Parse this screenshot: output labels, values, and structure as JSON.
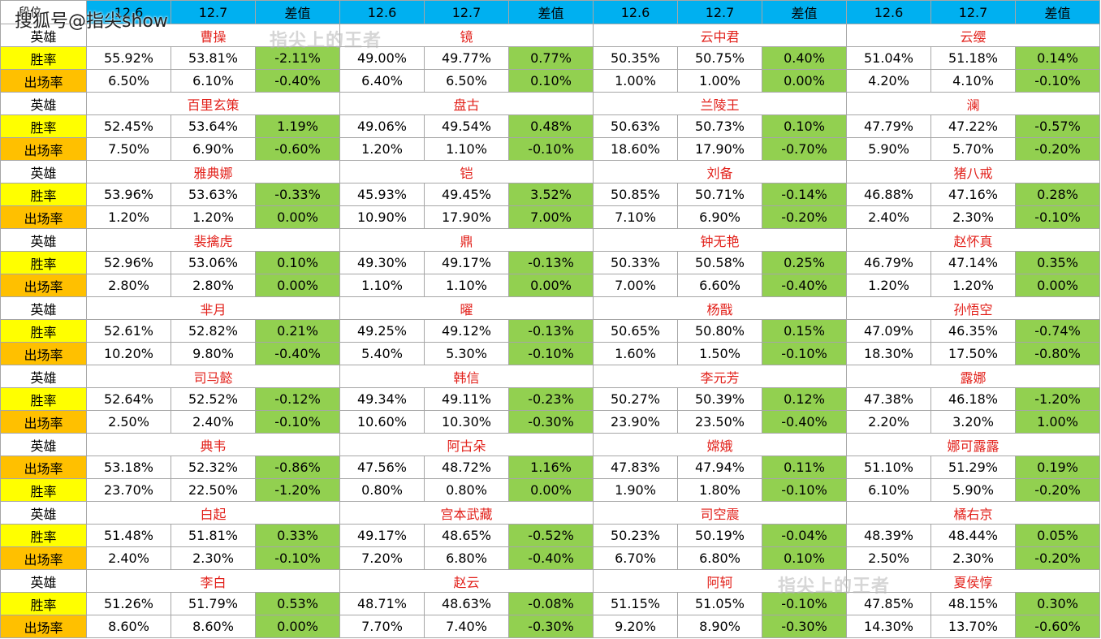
{
  "header": {
    "first_col": "段位",
    "cols": [
      "12.6",
      "12.7",
      "差值",
      "12.6",
      "12.7",
      "差值",
      "12.6",
      "12.7",
      "差值",
      "12.6",
      "12.7",
      "差值"
    ]
  },
  "watermarks": {
    "logo": "搜狐号@指尖show",
    "gray_top": "指尖上的王者",
    "gray_bottom": "指尖上的王者"
  },
  "colors": {
    "header": "#00b0f0",
    "win_label": "#ffff00",
    "pick_label": "#ffc000",
    "diff": "#92d050",
    "hero_name": "#e2201a"
  },
  "hero_label": "英雄",
  "blocks": [
    {
      "heroes": [
        "曹操",
        "镜",
        "云中君",
        "云缨"
      ],
      "rows": [
        {
          "label": "胜率",
          "type": "win",
          "values": [
            "55.92%",
            "53.81%",
            "-2.11%",
            "49.00%",
            "49.77%",
            "0.77%",
            "50.35%",
            "50.75%",
            "0.40%",
            "51.04%",
            "51.18%",
            "0.14%"
          ]
        },
        {
          "label": "出场率",
          "type": "pick",
          "values": [
            "6.50%",
            "6.10%",
            "-0.40%",
            "6.40%",
            "6.50%",
            "0.10%",
            "1.00%",
            "1.00%",
            "0.00%",
            "4.20%",
            "4.10%",
            "-0.10%"
          ]
        }
      ]
    },
    {
      "heroes": [
        "百里玄策",
        "盘古",
        "兰陵王",
        "澜"
      ],
      "rows": [
        {
          "label": "胜率",
          "type": "win",
          "values": [
            "52.45%",
            "53.64%",
            "1.19%",
            "49.06%",
            "49.54%",
            "0.48%",
            "50.63%",
            "50.73%",
            "0.10%",
            "47.79%",
            "47.22%",
            "-0.57%"
          ]
        },
        {
          "label": "出场率",
          "type": "pick",
          "values": [
            "7.50%",
            "6.90%",
            "-0.60%",
            "1.20%",
            "1.10%",
            "-0.10%",
            "18.60%",
            "17.90%",
            "-0.70%",
            "5.90%",
            "5.70%",
            "-0.20%"
          ]
        }
      ]
    },
    {
      "heroes": [
        "雅典娜",
        "铠",
        "刘备",
        "猪八戒"
      ],
      "rows": [
        {
          "label": "胜率",
          "type": "win",
          "values": [
            "53.96%",
            "53.63%",
            "-0.33%",
            "45.93%",
            "49.45%",
            "3.52%",
            "50.85%",
            "50.71%",
            "-0.14%",
            "46.88%",
            "47.16%",
            "0.28%"
          ]
        },
        {
          "label": "出场率",
          "type": "pick",
          "values": [
            "1.20%",
            "1.20%",
            "0.00%",
            "10.90%",
            "17.90%",
            "7.00%",
            "7.10%",
            "6.90%",
            "-0.20%",
            "2.40%",
            "2.30%",
            "-0.10%"
          ]
        }
      ]
    },
    {
      "heroes": [
        "裴擒虎",
        "鼎",
        "钟无艳",
        "赵怀真"
      ],
      "rows": [
        {
          "label": "胜率",
          "type": "win",
          "values": [
            "52.96%",
            "53.06%",
            "0.10%",
            "49.30%",
            "49.17%",
            "-0.13%",
            "50.33%",
            "50.58%",
            "0.25%",
            "46.79%",
            "47.14%",
            "0.35%"
          ]
        },
        {
          "label": "出场率",
          "type": "pick",
          "values": [
            "2.80%",
            "2.80%",
            "0.00%",
            "1.10%",
            "1.10%",
            "0.00%",
            "7.00%",
            "6.60%",
            "-0.40%",
            "1.20%",
            "1.20%",
            "0.00%"
          ]
        }
      ]
    },
    {
      "heroes": [
        "芈月",
        "曜",
        "杨戬",
        "孙悟空"
      ],
      "rows": [
        {
          "label": "胜率",
          "type": "win",
          "values": [
            "52.61%",
            "52.82%",
            "0.21%",
            "49.25%",
            "49.12%",
            "-0.13%",
            "50.65%",
            "50.80%",
            "0.15%",
            "47.09%",
            "46.35%",
            "-0.74%"
          ]
        },
        {
          "label": "出场率",
          "type": "pick",
          "values": [
            "10.20%",
            "9.80%",
            "-0.40%",
            "5.40%",
            "5.30%",
            "-0.10%",
            "1.60%",
            "1.50%",
            "-0.10%",
            "18.30%",
            "17.50%",
            "-0.80%"
          ]
        }
      ]
    },
    {
      "heroes": [
        "司马懿",
        "韩信",
        "李元芳",
        "露娜"
      ],
      "rows": [
        {
          "label": "胜率",
          "type": "win",
          "values": [
            "52.64%",
            "52.52%",
            "-0.12%",
            "49.34%",
            "49.11%",
            "-0.23%",
            "50.27%",
            "50.39%",
            "0.12%",
            "47.38%",
            "46.18%",
            "-1.20%"
          ]
        },
        {
          "label": "出场率",
          "type": "pick",
          "values": [
            "2.50%",
            "2.40%",
            "-0.10%",
            "10.60%",
            "10.30%",
            "-0.30%",
            "23.90%",
            "23.50%",
            "-0.40%",
            "2.20%",
            "3.20%",
            "1.00%"
          ]
        }
      ]
    },
    {
      "heroes": [
        "典韦",
        "阿古朵",
        "嫦娥",
        "娜可露露"
      ],
      "rows": [
        {
          "label": "出场率",
          "type": "pick",
          "values": [
            "53.18%",
            "52.32%",
            "-0.86%",
            "47.56%",
            "48.72%",
            "1.16%",
            "47.83%",
            "47.94%",
            "0.11%",
            "51.10%",
            "51.29%",
            "0.19%"
          ]
        },
        {
          "label": "胜率",
          "type": "win",
          "values": [
            "23.70%",
            "22.50%",
            "-1.20%",
            "0.80%",
            "0.80%",
            "0.00%",
            "1.90%",
            "1.80%",
            "-0.10%",
            "6.10%",
            "5.90%",
            "-0.20%"
          ]
        }
      ]
    },
    {
      "heroes": [
        "白起",
        "宫本武藏",
        "司空震",
        "橘右京"
      ],
      "rows": [
        {
          "label": "胜率",
          "type": "win",
          "values": [
            "51.48%",
            "51.81%",
            "0.33%",
            "49.17%",
            "48.65%",
            "-0.52%",
            "50.23%",
            "50.19%",
            "-0.04%",
            "48.39%",
            "48.44%",
            "0.05%"
          ]
        },
        {
          "label": "出场率",
          "type": "pick",
          "values": [
            "2.40%",
            "2.30%",
            "-0.10%",
            "7.20%",
            "6.80%",
            "-0.40%",
            "6.70%",
            "6.80%",
            "0.10%",
            "2.50%",
            "2.30%",
            "-0.20%"
          ]
        }
      ]
    },
    {
      "heroes": [
        "李白",
        "赵云",
        "阿轲",
        "夏侯惇"
      ],
      "rows": [
        {
          "label": "胜率",
          "type": "win",
          "values": [
            "51.26%",
            "51.79%",
            "0.53%",
            "48.71%",
            "48.63%",
            "-0.08%",
            "51.15%",
            "51.05%",
            "-0.10%",
            "47.85%",
            "48.15%",
            "0.30%"
          ]
        },
        {
          "label": "出场率",
          "type": "pick",
          "values": [
            "8.60%",
            "8.60%",
            "0.00%",
            "7.70%",
            "7.40%",
            "-0.30%",
            "9.20%",
            "8.90%",
            "-0.30%",
            "14.30%",
            "13.70%",
            "-0.60%"
          ]
        }
      ]
    }
  ]
}
